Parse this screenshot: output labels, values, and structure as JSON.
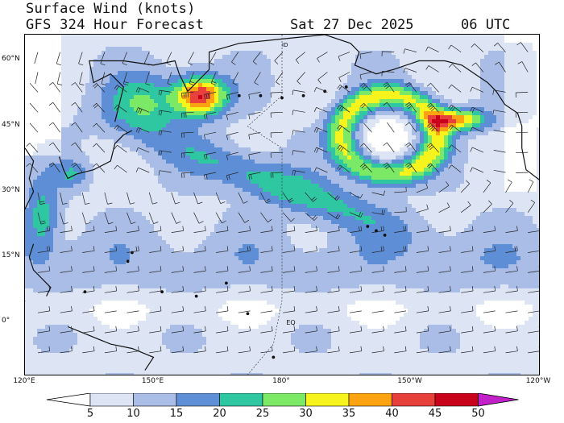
{
  "header": {
    "title": "Surface Wind (knots)",
    "subtitle": "GFS 324 Hour Forecast",
    "valid_date": "Sat 27 Dec 2025",
    "valid_time": "06 UTC"
  },
  "map": {
    "region": "North Pacific",
    "lat_labels": [
      {
        "text": "60°N",
        "lat": 60
      },
      {
        "text": "45°N",
        "lat": 45
      },
      {
        "text": "30°N",
        "lat": 30
      },
      {
        "text": "15°N",
        "lat": 15
      },
      {
        "text": "0°",
        "lat": 0
      }
    ],
    "lon_labels": [
      {
        "text": "120°E",
        "lon": 120
      },
      {
        "text": "150°E",
        "lon": 150
      },
      {
        "text": "180°",
        "lon": 180
      },
      {
        "text": "150°W",
        "lon": 210
      },
      {
        "text": "120°W",
        "lon": 240
      }
    ],
    "lat_range": [
      -12,
      66
    ],
    "lon_range": [
      120,
      240
    ],
    "annotations": [
      "EQ",
      "ID"
    ],
    "wind_features": [
      {
        "name": "Kamchatka jet core",
        "lat": 52,
        "lon": 160,
        "speed_kt": 48
      },
      {
        "name": "Gulf of Alaska low ring",
        "lat": 43,
        "lon": 207,
        "speed_kt": 35
      },
      {
        "name": "Alaska coastal max",
        "lat": 47,
        "lon": 222,
        "speed_kt": 45
      },
      {
        "name": "Central Pacific band",
        "lat": 33,
        "lon": 175,
        "speed_kt": 28
      },
      {
        "name": "Philippine Sea flow",
        "lat": 22,
        "lon": 124,
        "speed_kt": 26
      }
    ]
  },
  "colorbar": {
    "ticks": [
      "5",
      "10",
      "15",
      "20",
      "25",
      "30",
      "35",
      "40",
      "45",
      "50"
    ],
    "colors": [
      "#ffffff",
      "#dde5f5",
      "#a9bde6",
      "#5e8fd6",
      "#2ec7a2",
      "#7be866",
      "#f6f41c",
      "#fca311",
      "#e8403a",
      "#c8001c",
      "#c221c9"
    ]
  }
}
